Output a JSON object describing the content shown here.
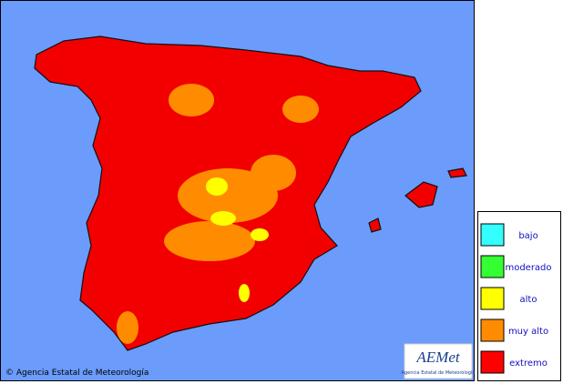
{
  "legend": {
    "items": [
      {
        "label": "bajo",
        "color": "#33ffff"
      },
      {
        "label": "moderado",
        "color": "#33ff33"
      },
      {
        "label": "alto",
        "color": "#ffff00"
      },
      {
        "label": "muy alto",
        "color": "#ff8c00"
      },
      {
        "label": "extremo",
        "color": "#ff0000"
      }
    ]
  },
  "credit": "© Agencia Estatal de Meteorología",
  "logo": {
    "title": "AEMet",
    "subtitle": "Agencia Estatal de Meteorología"
  }
}
